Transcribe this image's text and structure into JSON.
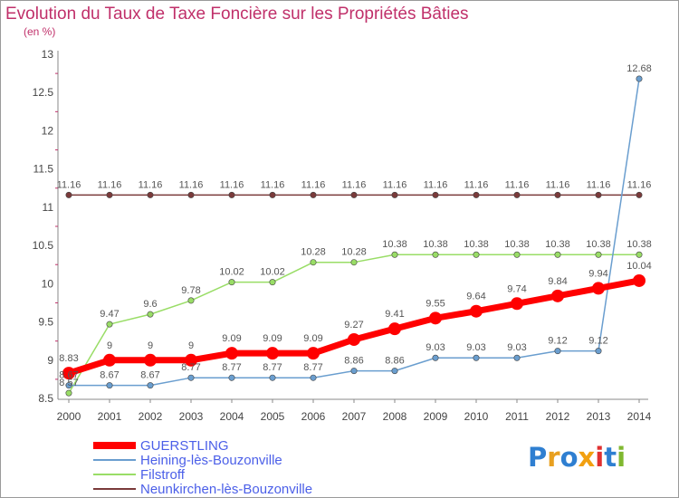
{
  "title": "Evolution du Taux de Taxe Foncière sur les Propriétés Bâties",
  "subtitle": "(en %)",
  "logo": {
    "text": "Proxiti",
    "letters": [
      "P",
      "r",
      "o",
      "x",
      "i",
      "t",
      "i"
    ],
    "colors": [
      "#2f7fd1",
      "#e8a020",
      "#2f7fd1",
      "#f2a010",
      "#e03030",
      "#2f7fd1",
      "#80b830"
    ]
  },
  "chart_data": {
    "type": "line",
    "x": [
      2000,
      2001,
      2002,
      2003,
      2004,
      2005,
      2006,
      2007,
      2008,
      2009,
      2010,
      2011,
      2012,
      2013,
      2014
    ],
    "ylim": [
      8.5,
      13
    ],
    "yticks": [
      8.5,
      9,
      9.5,
      10,
      10.5,
      11,
      11.5,
      12,
      12.5,
      13
    ],
    "ytick_labels": [
      "8.5",
      "9",
      "9.5",
      "10",
      "10.5",
      "11",
      "11.5",
      "12",
      "12.5",
      "13"
    ],
    "xlabel": "",
    "ylabel": "(en %)",
    "series": [
      {
        "name": "GUERSTLING",
        "color": "#ff0000",
        "values": [
          8.83,
          9,
          9,
          9,
          9.09,
          9.09,
          9.09,
          9.27,
          9.41,
          9.55,
          9.64,
          9.74,
          9.84,
          9.94,
          10.04
        ],
        "labels": [
          "8.83",
          "9",
          "9",
          "9",
          "9.09",
          "9.09",
          "9.09",
          "9.27",
          "9.41",
          "9.55",
          "9.64",
          "9.74",
          "9.84",
          "9.94",
          "10.04"
        ]
      },
      {
        "name": "Heining-lès-Bouzonville",
        "color": "#6a9ecf",
        "values": [
          8.67,
          8.67,
          8.67,
          8.77,
          8.77,
          8.77,
          8.77,
          8.86,
          8.86,
          9.03,
          9.03,
          9.03,
          9.12,
          9.12,
          12.68
        ],
        "labels": [
          "8.67",
          "8.67",
          "8.67",
          "8.77",
          "8.77",
          "8.77",
          "8.77",
          "8.86",
          "8.86",
          "9.03",
          "9.03",
          "9.03",
          "9.12",
          "9.12",
          "12.68"
        ]
      },
      {
        "name": "Filstroff",
        "color": "#99dd66",
        "values": [
          8.57,
          9.47,
          9.6,
          9.78,
          10.02,
          10.02,
          10.28,
          10.28,
          10.38,
          10.38,
          10.38,
          10.38,
          10.38,
          10.38,
          10.38
        ],
        "labels": [
          "8.57",
          "9.47",
          "9.6",
          "9.78",
          "10.02",
          "10.02",
          "10.28",
          "10.28",
          "10.38",
          "10.38",
          "10.38",
          "10.38",
          "10.38",
          "10.38",
          "10.38"
        ]
      },
      {
        "name": "Neunkirchen-lès-Bouzonville",
        "color": "#7a3a3a",
        "values": [
          11.16,
          11.16,
          11.16,
          11.16,
          11.16,
          11.16,
          11.16,
          11.16,
          11.16,
          11.16,
          11.16,
          11.16,
          11.16,
          11.16,
          11.16
        ],
        "labels": [
          "11.16",
          "11.16",
          "11.16",
          "11.16",
          "11.16",
          "11.16",
          "11.16",
          "11.16",
          "11.16",
          "11.16",
          "11.16",
          "11.16",
          "11.16",
          "11.16",
          "11.16"
        ]
      }
    ]
  }
}
